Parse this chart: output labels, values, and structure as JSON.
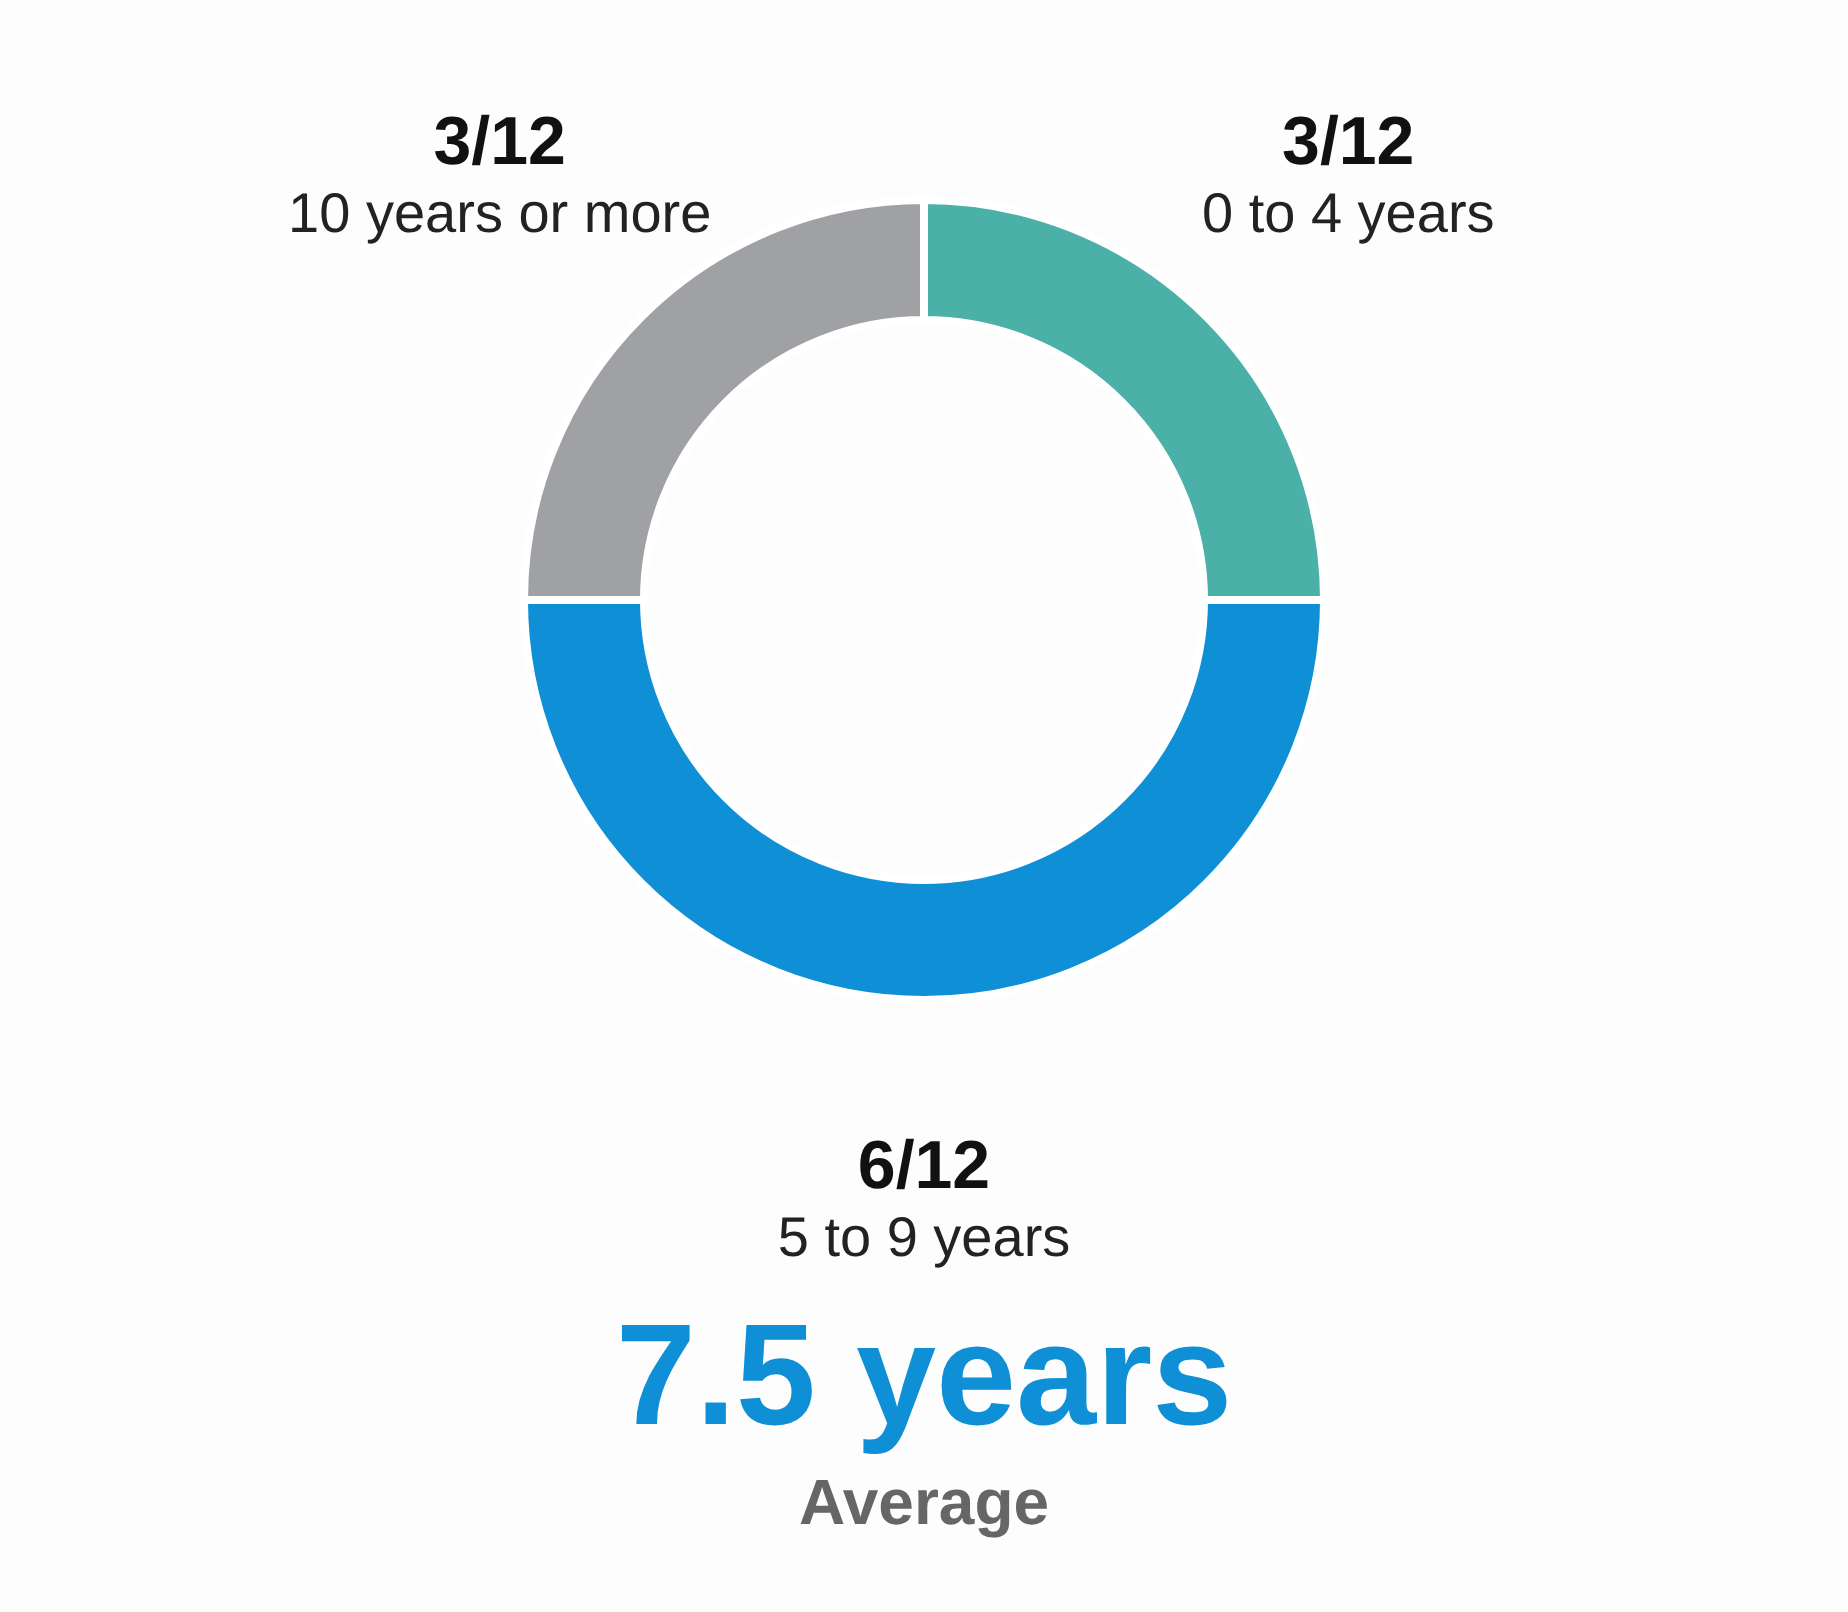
{
  "chart_data": {
    "type": "donut",
    "categories": [
      "0 to 4 years",
      "5 to 9 years",
      "10 years or more"
    ],
    "values": [
      0.25,
      0.5,
      0.25
    ],
    "colors": [
      "#4ab0a8",
      "#0e8fd6",
      "#a0a1a5"
    ],
    "value_labels": [
      "3/12",
      "6/12",
      "3/12"
    ],
    "annotations": [
      "7.5 years",
      "Average"
    ]
  }
}
